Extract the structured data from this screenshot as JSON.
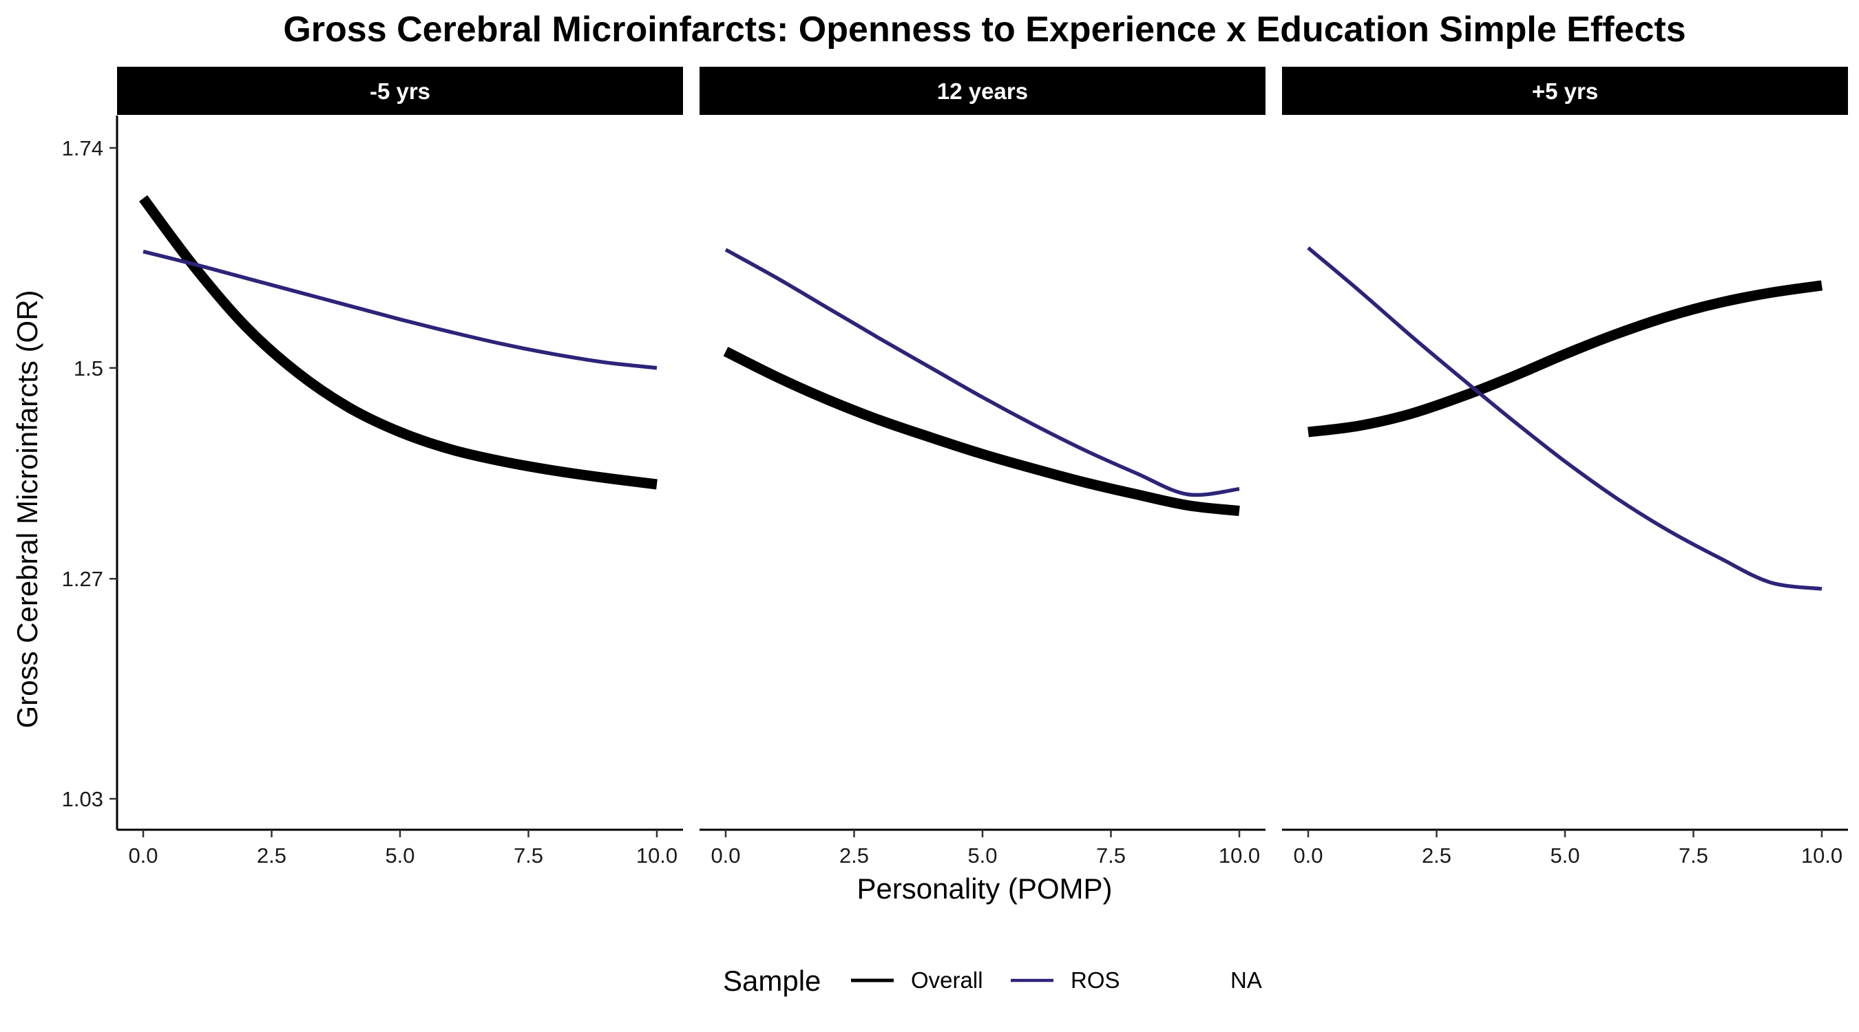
{
  "chart_data": {
    "type": "line",
    "title": "Gross Cerebral Microinfarcts: Openness to Experience x Education Simple Effects",
    "xlabel": "Personality (POMP)",
    "ylabel": "Gross Cerebral Microinfarcts (OR)",
    "xlim": [
      0,
      10
    ],
    "ylim": [
      1.03,
      1.74
    ],
    "x_ticks": [
      "0.0",
      "2.5",
      "5.0",
      "7.5",
      "10.0"
    ],
    "y_ticks": [
      "1.03",
      "1.27",
      "1.5",
      "1.74"
    ],
    "grid": false,
    "legend": {
      "title": "Sample",
      "position": "bottom",
      "entries": [
        {
          "label": "Overall",
          "color": "#000000",
          "width": "thick"
        },
        {
          "label": "ROS",
          "color": "#2d2479",
          "width": "thin"
        },
        {
          "label": "NA",
          "color": null,
          "width": "none"
        }
      ]
    },
    "x": [
      0,
      1,
      2,
      3,
      4,
      5,
      6,
      7,
      8,
      9,
      10
    ],
    "panels": [
      {
        "label": "-5 yrs",
        "series": [
          {
            "name": "Overall",
            "values": [
              1.685,
              1.61,
              1.545,
              1.495,
              1.457,
              1.43,
              1.411,
              1.398,
              1.388,
              1.38,
              1.373
            ]
          },
          {
            "name": "ROS",
            "values": [
              1.627,
              1.613,
              1.598,
              1.583,
              1.568,
              1.553,
              1.539,
              1.526,
              1.515,
              1.506,
              1.5
            ]
          }
        ]
      },
      {
        "label": "12 years",
        "series": [
          {
            "name": "Overall",
            "values": [
              1.518,
              1.49,
              1.465,
              1.443,
              1.424,
              1.406,
              1.39,
              1.375,
              1.362,
              1.35,
              1.344
            ]
          },
          {
            "name": "ROS",
            "values": [
              1.629,
              1.598,
              1.565,
              1.532,
              1.5,
              1.468,
              1.438,
              1.41,
              1.385,
              1.362,
              1.368
            ]
          }
        ]
      },
      {
        "label": "+5 yrs",
        "series": [
          {
            "name": "Overall",
            "values": [
              1.43,
              1.437,
              1.45,
              1.469,
              1.491,
              1.515,
              1.537,
              1.556,
              1.571,
              1.582,
              1.59
            ]
          },
          {
            "name": "ROS",
            "values": [
              1.631,
              1.584,
              1.535,
              1.488,
              1.442,
              1.398,
              1.358,
              1.323,
              1.293,
              1.266,
              1.259
            ]
          }
        ]
      }
    ]
  }
}
